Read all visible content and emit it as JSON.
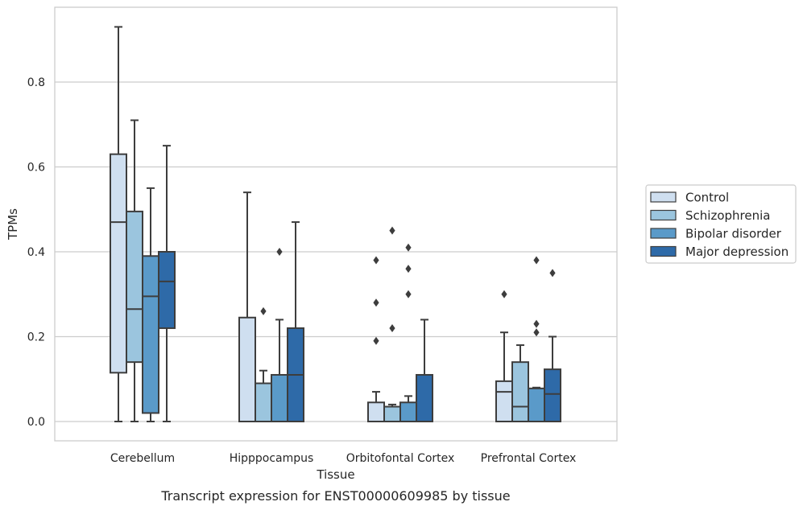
{
  "chart_data": {
    "type": "box",
    "title": "Transcript expression for ENST00000609985 by tissue",
    "xlabel": "Tissue",
    "ylabel": "TPMs",
    "ylim": [
      -0.045,
      0.98
    ],
    "yticks": [
      0.0,
      0.2,
      0.4,
      0.6,
      0.8
    ],
    "ytick_labels": [
      "0.0",
      "0.2",
      "0.4",
      "0.6",
      "0.8"
    ],
    "categories": [
      "Cerebellum",
      "Hipppocampus",
      "Orbitofontal Cortex",
      "Prefrontal Cortex"
    ],
    "grid": "horizontal",
    "legend_position": "right",
    "series": [
      {
        "name": "Control",
        "color": "#cfdff0",
        "boxes": [
          {
            "whislo": 0.0,
            "q1": 0.115,
            "med": 0.47,
            "q3": 0.63,
            "whishi": 0.93,
            "fliers": []
          },
          {
            "whislo": 0.0,
            "q1": 0.0,
            "med": 0.0,
            "q3": 0.245,
            "whishi": 0.54,
            "fliers": []
          },
          {
            "whislo": 0.0,
            "q1": 0.0,
            "med": 0.0,
            "q3": 0.045,
            "whishi": 0.07,
            "fliers": [
              0.19,
              0.28,
              0.38
            ]
          },
          {
            "whislo": 0.0,
            "q1": 0.0,
            "med": 0.07,
            "q3": 0.095,
            "whishi": 0.21,
            "fliers": [
              0.3
            ]
          }
        ]
      },
      {
        "name": "Schizophrenia",
        "color": "#9bc5de",
        "boxes": [
          {
            "whislo": 0.0,
            "q1": 0.14,
            "med": 0.265,
            "q3": 0.495,
            "whishi": 0.71,
            "fliers": []
          },
          {
            "whislo": 0.0,
            "q1": 0.0,
            "med": 0.0,
            "q3": 0.09,
            "whishi": 0.12,
            "fliers": [
              0.26
            ]
          },
          {
            "whislo": 0.0,
            "q1": 0.0,
            "med": 0.0,
            "q3": 0.035,
            "whishi": 0.04,
            "fliers": [
              0.22,
              0.45
            ]
          },
          {
            "whislo": 0.0,
            "q1": 0.0,
            "med": 0.035,
            "q3": 0.14,
            "whishi": 0.18,
            "fliers": []
          }
        ]
      },
      {
        "name": "Bipolar disorder",
        "color": "#5a9ac9",
        "boxes": [
          {
            "whislo": 0.0,
            "q1": 0.02,
            "med": 0.295,
            "q3": 0.39,
            "whishi": 0.55,
            "fliers": []
          },
          {
            "whislo": 0.0,
            "q1": 0.0,
            "med": 0.0,
            "q3": 0.11,
            "whishi": 0.24,
            "fliers": [
              0.4
            ]
          },
          {
            "whislo": 0.0,
            "q1": 0.0,
            "med": 0.0,
            "q3": 0.045,
            "whishi": 0.06,
            "fliers": [
              0.3,
              0.36,
              0.41
            ]
          },
          {
            "whislo": 0.0,
            "q1": 0.0,
            "med": 0.0,
            "q3": 0.078,
            "whishi": 0.08,
            "fliers": [
              0.21,
              0.23,
              0.38
            ]
          }
        ]
      },
      {
        "name": "Major depression",
        "color": "#2e6aa8",
        "boxes": [
          {
            "whislo": 0.0,
            "q1": 0.22,
            "med": 0.33,
            "q3": 0.4,
            "whishi": 0.65,
            "fliers": []
          },
          {
            "whislo": 0.0,
            "q1": 0.0,
            "med": 0.11,
            "q3": 0.22,
            "whishi": 0.47,
            "fliers": []
          },
          {
            "whislo": 0.0,
            "q1": 0.0,
            "med": 0.0,
            "q3": 0.11,
            "whishi": 0.24,
            "fliers": []
          },
          {
            "whislo": 0.0,
            "q1": 0.0,
            "med": 0.065,
            "q3": 0.123,
            "whishi": 0.2,
            "fliers": [
              0.35
            ]
          }
        ]
      }
    ]
  }
}
